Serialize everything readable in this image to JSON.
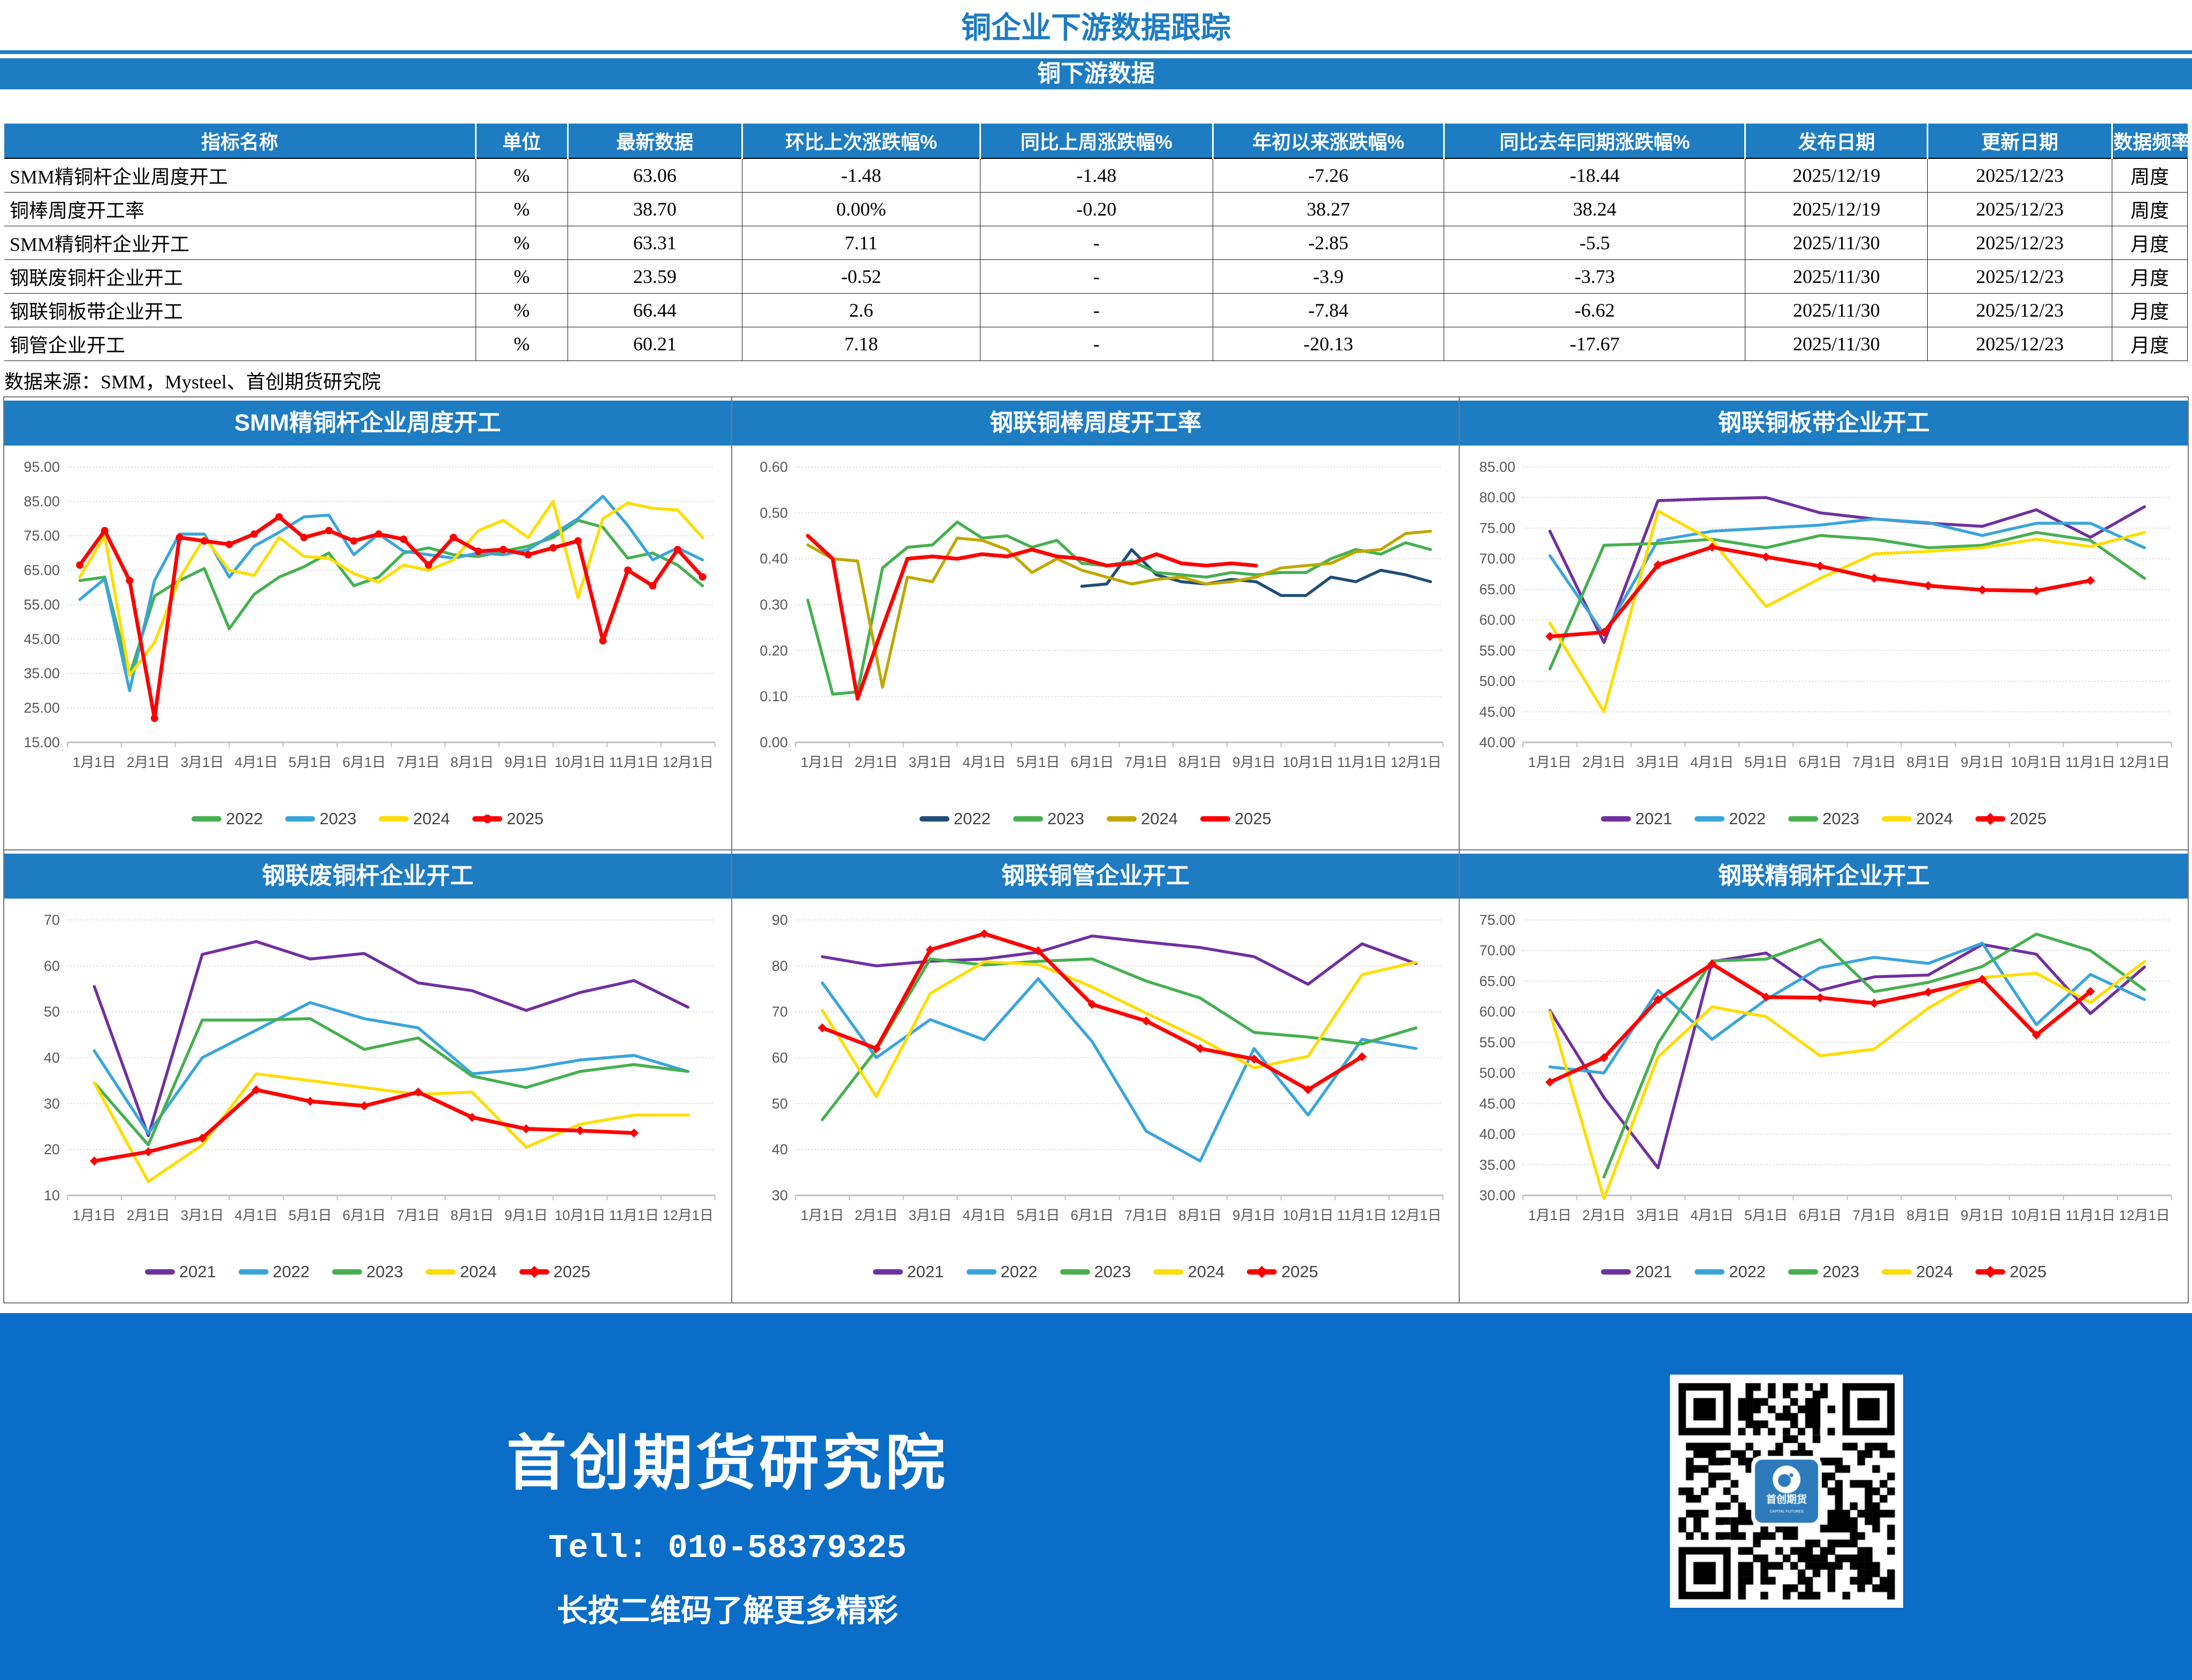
{
  "header": {
    "title": "铜企业下游数据跟踪",
    "subtitle": "铜下游数据",
    "accent_color": "#1E7CC2"
  },
  "table": {
    "headers": [
      "指标名称",
      "单位",
      "最新数据",
      "环比上次涨跌幅%",
      "同比上周涨跌幅%",
      "年初以来涨跌幅%",
      "同比去年同期涨跌幅%",
      "发布日期",
      "更新日期",
      "数据频率"
    ],
    "col_widths": [
      "21.6%",
      "4.2%",
      "8%",
      "10.9%",
      "10.65%",
      "10.6%",
      "13.8%",
      "8.35%",
      "8.45%",
      "3.45%"
    ],
    "rows": [
      [
        "SMM精铜杆企业周度开工",
        "%",
        "63.06",
        "-1.48",
        "-1.48",
        "-7.26",
        "-18.44",
        "2025/12/19",
        "2025/12/23",
        "周度"
      ],
      [
        "铜棒周度开工率",
        "%",
        "38.70",
        "0.00%",
        "-0.20",
        "38.27",
        "38.24",
        "2025/12/19",
        "2025/12/23",
        "周度"
      ],
      [
        "SMM精铜杆企业开工",
        "%",
        "63.31",
        "7.11",
        "-",
        "-2.85",
        "-5.5",
        "2025/11/30",
        "2025/12/23",
        "月度"
      ],
      [
        "钢联废铜杆企业开工",
        "%",
        "23.59",
        "-0.52",
        "-",
        "-3.9",
        "-3.73",
        "2025/11/30",
        "2025/12/23",
        "月度"
      ],
      [
        "钢联铜板带企业开工",
        "%",
        "66.44",
        "2.6",
        "-",
        "-7.84",
        "-6.62",
        "2025/11/30",
        "2025/12/23",
        "月度"
      ],
      [
        "铜管企业开工",
        "%",
        "60.21",
        "7.18",
        "-",
        "-20.13",
        "-17.67",
        "2025/11/30",
        "2025/12/23",
        "月度"
      ]
    ],
    "source_note": "数据来源：SMM，Mysteel、首创期货研究院"
  },
  "chart_data": [
    {
      "type": "line",
      "title": "SMM精铜杆企业周度开工",
      "ylim": [
        15,
        95
      ],
      "ytick_step": 10,
      "y_decimals": 2,
      "x_labels": [
        "1月1日",
        "2月1日",
        "3月1日",
        "4月1日",
        "5月1日",
        "6月1日",
        "7月1日",
        "8月1日",
        "9月1日",
        "10月1日",
        "11月1日",
        "12月1日"
      ],
      "grid": true,
      "legend_position": "bottom",
      "series": [
        {
          "name": "2022",
          "color": "#46B050",
          "marker": "none",
          "values": [
            62,
            63,
            34.5,
            57.5,
            62,
            65.5,
            48,
            58,
            63,
            66,
            70,
            60.5,
            63,
            70,
            71.5,
            69.5,
            69,
            70.5,
            72,
            74.5,
            79.5,
            77.5,
            68.5,
            70,
            66.5,
            60.5
          ]
        },
        {
          "name": "2023",
          "color": "#3AA5DC",
          "marker": "none",
          "values": [
            56.5,
            62.5,
            30,
            62,
            75.5,
            75.5,
            63,
            72,
            76,
            80.5,
            81,
            69.5,
            75.5,
            70.5,
            69.5,
            68.5,
            70,
            69.5,
            71,
            75.5,
            80,
            86.5,
            78,
            68,
            71.5,
            68
          ]
        },
        {
          "name": "2024",
          "color": "#FFDD00",
          "marker": "none",
          "values": [
            63,
            75,
            34.5,
            44,
            62.5,
            74.5,
            65,
            63.5,
            74.5,
            69,
            68.5,
            64,
            61.5,
            66.5,
            65,
            68,
            76.5,
            79.5,
            74.5,
            85,
            57,
            80,
            84.5,
            83,
            82.5,
            74.5
          ]
        },
        {
          "name": "2025",
          "color": "#FF0000",
          "marker": "circle",
          "values": [
            66.5,
            76.5,
            62,
            22,
            74.5,
            73.5,
            72.5,
            75.5,
            80.5,
            74.5,
            76.5,
            73.5,
            75.5,
            74,
            66.5,
            74.5,
            70.5,
            71,
            69.5,
            71.5,
            73.5,
            44.5,
            65,
            60.5,
            71,
            63.06
          ]
        }
      ]
    },
    {
      "type": "line",
      "title": "钢联铜棒周度开工率",
      "ylim": [
        0,
        0.6
      ],
      "ytick_step": 0.1,
      "y_decimals": 2,
      "x_labels": [
        "1月1日",
        "2月1日",
        "3月1日",
        "4月1日",
        "5月1日",
        "6月1日",
        "7月1日",
        "8月1日",
        "9月1日",
        "10月1日",
        "11月1日",
        "12月1日"
      ],
      "grid": true,
      "legend_position": "bottom",
      "series": [
        {
          "name": "2022",
          "color": "#1F4E79",
          "marker": "none",
          "values": [
            null,
            null,
            null,
            null,
            null,
            null,
            null,
            null,
            null,
            null,
            null,
            0.34,
            0.345,
            0.42,
            0.365,
            0.35,
            0.345,
            0.355,
            0.35,
            0.32,
            0.32,
            0.36,
            0.35,
            0.375,
            0.365,
            0.35
          ]
        },
        {
          "name": "2023",
          "color": "#46B050",
          "marker": "none",
          "values": [
            0.31,
            0.105,
            0.11,
            0.38,
            0.425,
            0.43,
            0.48,
            0.445,
            0.45,
            0.425,
            0.44,
            0.39,
            0.385,
            0.395,
            0.37,
            0.365,
            0.36,
            0.37,
            0.365,
            0.37,
            0.37,
            0.4,
            0.42,
            0.41,
            0.435,
            0.42
          ]
        },
        {
          "name": "2024",
          "color": "#BFA800",
          "marker": "none",
          "values": [
            0.43,
            0.4,
            0.395,
            0.12,
            0.36,
            0.35,
            0.445,
            0.44,
            0.42,
            0.37,
            0.4,
            0.375,
            0.36,
            0.345,
            0.355,
            0.36,
            0.345,
            0.35,
            0.36,
            0.38,
            0.385,
            0.39,
            0.415,
            0.42,
            0.455,
            0.46
          ]
        },
        {
          "name": "2025",
          "color": "#FF0000",
          "marker": "none",
          "values": [
            0.45,
            0.4,
            0.095,
            0.25,
            0.4,
            0.405,
            0.4,
            0.41,
            0.405,
            0.42,
            0.405,
            0.4,
            0.385,
            0.39,
            0.41,
            0.39,
            0.385,
            0.39,
            0.385,
            null,
            null,
            null,
            null,
            null,
            null,
            null
          ]
        }
      ]
    },
    {
      "type": "line",
      "title": "钢联铜板带企业开工",
      "ylim": [
        40,
        85
      ],
      "ytick_step": 5,
      "y_decimals": 2,
      "x_labels": [
        "1月1日",
        "2月1日",
        "3月1日",
        "4月1日",
        "5月1日",
        "6月1日",
        "7月1日",
        "8月1日",
        "9月1日",
        "10月1日",
        "11月1日",
        "12月1日"
      ],
      "grid": true,
      "legend_position": "bottom",
      "series": [
        {
          "name": "2021",
          "color": "#7030A0",
          "marker": "none",
          "values": [
            74.5,
            56.3,
            79.5,
            79.8,
            80,
            77.5,
            76.5,
            75.8,
            75.3,
            78,
            73.5,
            78.5
          ]
        },
        {
          "name": "2022",
          "color": "#3AA5DC",
          "marker": "none",
          "values": [
            70.5,
            57.7,
            73,
            74.5,
            75,
            75.5,
            76.5,
            75.9,
            73.8,
            75.8,
            75.8,
            71.8
          ]
        },
        {
          "name": "2023",
          "color": "#46B050",
          "marker": "none",
          "values": [
            52,
            72.2,
            72.5,
            73.2,
            71.8,
            73.8,
            73.2,
            71.8,
            72.2,
            74.3,
            73,
            66.8
          ]
        },
        {
          "name": "2024",
          "color": "#FFDD00",
          "marker": "none",
          "values": [
            59.5,
            45,
            77.8,
            73,
            62.2,
            66.8,
            70.8,
            71.2,
            71.8,
            73.2,
            72,
            74.3
          ]
        },
        {
          "name": "2025",
          "color": "#FF0000",
          "marker": "diamond",
          "values": [
            57.3,
            58,
            69,
            71.9,
            70.3,
            68.8,
            66.8,
            65.6,
            64.9,
            64.76,
            66.44,
            null
          ]
        }
      ]
    },
    {
      "type": "line",
      "title": "钢联废铜杆企业开工",
      "ylim": [
        10,
        70
      ],
      "ytick_step": 10,
      "y_decimals": 0,
      "x_labels": [
        "1月1日",
        "2月1日",
        "3月1日",
        "4月1日",
        "5月1日",
        "6月1日",
        "7月1日",
        "8月1日",
        "9月1日",
        "10月1日",
        "11月1日",
        "12月1日"
      ],
      "grid": true,
      "legend_position": "bottom",
      "series": [
        {
          "name": "2021",
          "color": "#7030A0",
          "marker": "none",
          "values": [
            55.5,
            23,
            62.5,
            65.3,
            61.5,
            62.7,
            56.3,
            54.6,
            50.3,
            54.2,
            56.8,
            51
          ]
        },
        {
          "name": "2022",
          "color": "#3AA5DC",
          "marker": "none",
          "values": [
            41.5,
            23.5,
            40,
            46,
            52,
            48.5,
            46.5,
            36.5,
            37.5,
            39.5,
            40.5,
            37
          ]
        },
        {
          "name": "2023",
          "color": "#46B050",
          "marker": "none",
          "values": [
            34.5,
            21,
            48.2,
            48.2,
            48.5,
            41.8,
            44.3,
            36,
            33.5,
            37,
            38.5,
            37
          ]
        },
        {
          "name": "2024",
          "color": "#FFDD00",
          "marker": "none",
          "values": [
            34.5,
            13,
            21,
            36.5,
            35,
            33.5,
            32,
            32.5,
            20.5,
            25.5,
            27.5,
            27.5
          ]
        },
        {
          "name": "2025",
          "color": "#FF0000",
          "marker": "diamond",
          "values": [
            17.5,
            19.5,
            22.5,
            33,
            30.5,
            29.5,
            32.5,
            27,
            24.5,
            24.11,
            23.59,
            null
          ]
        }
      ]
    },
    {
      "type": "line",
      "title": "钢联铜管企业开工",
      "ylim": [
        30,
        90
      ],
      "ytick_step": 10,
      "y_decimals": 0,
      "x_labels": [
        "1月1日",
        "2月1日",
        "3月1日",
        "4月1日",
        "5月1日",
        "6月1日",
        "7月1日",
        "8月1日",
        "9月1日",
        "10月1日",
        "11月1日",
        "12月1日"
      ],
      "grid": true,
      "legend_position": "bottom",
      "series": [
        {
          "name": "2021",
          "color": "#7030A0",
          "marker": "none",
          "values": [
            82,
            80,
            81,
            81.5,
            83,
            86.5,
            85.2,
            84,
            82,
            76,
            84.8,
            80.5
          ]
        },
        {
          "name": "2022",
          "color": "#3AA5DC",
          "marker": "none",
          "values": [
            76.3,
            60,
            68.3,
            63.9,
            77.2,
            63.5,
            44,
            37.5,
            62,
            47.5,
            64,
            62
          ]
        },
        {
          "name": "2023",
          "color": "#46B050",
          "marker": "none",
          "values": [
            46.5,
            61.7,
            81.5,
            80.2,
            81,
            81.5,
            76.7,
            73,
            65.5,
            64.5,
            63,
            66.5
          ]
        },
        {
          "name": "2024",
          "color": "#FFDD00",
          "marker": "none",
          "values": [
            70.3,
            51.5,
            74,
            80.9,
            80.3,
            75.4,
            69.7,
            64.1,
            57.8,
            60.3,
            78.1,
            80.8
          ]
        },
        {
          "name": "2025",
          "color": "#FF0000",
          "marker": "diamond",
          "values": [
            66.5,
            62,
            83.5,
            87,
            83.3,
            71.6,
            68,
            62,
            59.7,
            53.03,
            60.21,
            null
          ]
        }
      ]
    },
    {
      "type": "line",
      "title": "钢联精铜杆企业开工",
      "ylim": [
        30,
        75
      ],
      "ytick_step": 5,
      "y_decimals": 2,
      "x_labels": [
        "1月1日",
        "2月1日",
        "3月1日",
        "4月1日",
        "5月1日",
        "6月1日",
        "7月1日",
        "8月1日",
        "9月1日",
        "10月1日",
        "11月1日",
        "12月1日"
      ],
      "grid": true,
      "legend_position": "bottom",
      "series": [
        {
          "name": "2021",
          "color": "#7030A0",
          "marker": "none",
          "values": [
            60.2,
            46,
            34.5,
            68.2,
            69.6,
            63.5,
            65.7,
            66,
            71,
            69.4,
            59.7,
            67.3
          ]
        },
        {
          "name": "2022",
          "color": "#3AA5DC",
          "marker": "none",
          "values": [
            51,
            50,
            63.5,
            55.5,
            62,
            67.2,
            68.9,
            67.9,
            71.2,
            57.9,
            66.1,
            62
          ]
        },
        {
          "name": "2023",
          "color": "#46B050",
          "marker": "none",
          "values": [
            null,
            33,
            54.8,
            68.3,
            68.6,
            71.8,
            63.3,
            64.8,
            67.4,
            72.7,
            70,
            63.6
          ]
        },
        {
          "name": "2024",
          "color": "#FFDD00",
          "marker": "none",
          "values": [
            60,
            29.5,
            52.6,
            60.8,
            59.2,
            52.8,
            53.9,
            60.6,
            65.6,
            66.3,
            61.5,
            68.2
          ]
        },
        {
          "name": "2025",
          "color": "#FF0000",
          "marker": "diamond",
          "values": [
            48.5,
            52.5,
            62,
            67.8,
            62.4,
            62.3,
            61.4,
            63.2,
            65.3,
            56.2,
            63.31,
            null
          ]
        }
      ]
    }
  ],
  "footer": {
    "org": "首创期货研究院",
    "tel": "Tell: 010-58379325",
    "qr_caption": "长按二维码了解更多精彩",
    "background": "#0A6DC8",
    "qr_logo_text": "首创期货",
    "qr_logo_subtext": "CAPITAL FUTURES"
  }
}
